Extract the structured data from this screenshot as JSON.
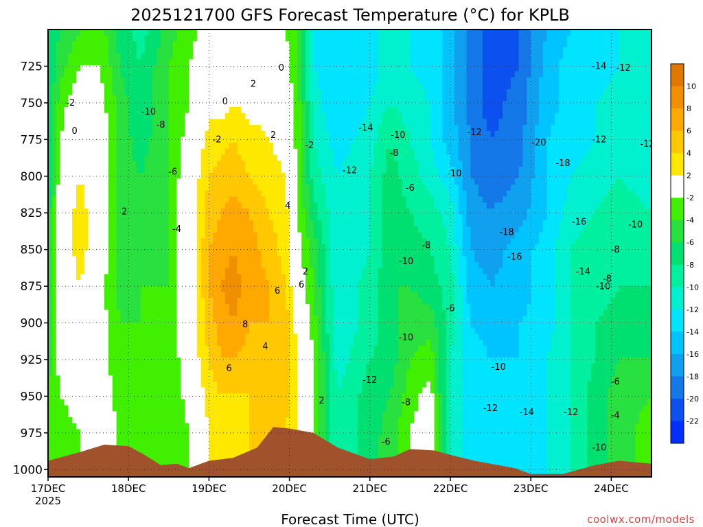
{
  "chart_data": {
    "type": "heatmap",
    "title": "2025121700 GFS Forecast Temperature (°C) for KPLB",
    "xlabel": "Forecast Time (UTC)",
    "ylabel": "",
    "credit": "coolwx.com/models",
    "x_ticks": [
      "17DEC",
      "18DEC",
      "19DEC",
      "20DEC",
      "21DEC",
      "22DEC",
      "23DEC",
      "24DEC"
    ],
    "x_year": "2025",
    "y_ticks": [
      "725",
      "750",
      "775",
      "800",
      "825",
      "850",
      "875",
      "900",
      "925",
      "950",
      "975",
      "1000"
    ],
    "ylim": [
      1005,
      700
    ],
    "y_scale": "pressure (hPa, inverted)",
    "x_range_days": [
      0,
      7.5
    ],
    "colorbar": {
      "labels": [
        "10",
        "8",
        "6",
        "4",
        "2",
        "-2",
        "-4",
        "-6",
        "-8",
        "-10",
        "-12",
        "-14",
        "-16",
        "-18",
        "-20",
        "-22"
      ],
      "bins": [
        {
          "min": 10,
          "max": 12,
          "color": "#e07800"
        },
        {
          "min": 8,
          "max": 10,
          "color": "#f09000"
        },
        {
          "min": 6,
          "max": 8,
          "color": "#ffa800"
        },
        {
          "min": 4,
          "max": 6,
          "color": "#ffc800"
        },
        {
          "min": 2,
          "max": 4,
          "color": "#ffe800"
        },
        {
          "min": -2,
          "max": 2,
          "color": "#ffffff"
        },
        {
          "min": -4,
          "max": -2,
          "color": "#40f000"
        },
        {
          "min": -6,
          "max": -4,
          "color": "#28e040"
        },
        {
          "min": -8,
          "max": -6,
          "color": "#00e070"
        },
        {
          "min": -10,
          "max": -8,
          "color": "#00f0a0"
        },
        {
          "min": -12,
          "max": -10,
          "color": "#00f0d0"
        },
        {
          "min": -14,
          "max": -12,
          "color": "#00e4ff"
        },
        {
          "min": -16,
          "max": -14,
          "color": "#00c4ff"
        },
        {
          "min": -18,
          "max": -16,
          "color": "#10a0f0"
        },
        {
          "min": -20,
          "max": -18,
          "color": "#1478e8"
        },
        {
          "min": -22,
          "max": -20,
          "color": "#0c50f0"
        },
        {
          "min": -24,
          "max": -22,
          "color": "#0030ff"
        }
      ]
    },
    "terrain_color": "#a0522d",
    "surface_pressure": [
      {
        "x": 0.0,
        "p": 994
      },
      {
        "x": 0.4,
        "p": 988
      },
      {
        "x": 0.7,
        "p": 983
      },
      {
        "x": 1.0,
        "p": 984
      },
      {
        "x": 1.2,
        "p": 990
      },
      {
        "x": 1.4,
        "p": 997
      },
      {
        "x": 1.6,
        "p": 996
      },
      {
        "x": 1.75,
        "p": 999
      },
      {
        "x": 2.0,
        "p": 994
      },
      {
        "x": 2.3,
        "p": 992
      },
      {
        "x": 2.6,
        "p": 985
      },
      {
        "x": 2.8,
        "p": 971
      },
      {
        "x": 3.0,
        "p": 972
      },
      {
        "x": 3.3,
        "p": 975
      },
      {
        "x": 3.6,
        "p": 985
      },
      {
        "x": 4.0,
        "p": 993
      },
      {
        "x": 4.3,
        "p": 991
      },
      {
        "x": 4.5,
        "p": 986
      },
      {
        "x": 4.8,
        "p": 987
      },
      {
        "x": 5.0,
        "p": 990
      },
      {
        "x": 5.3,
        "p": 994
      },
      {
        "x": 5.8,
        "p": 999
      },
      {
        "x": 6.0,
        "p": 1003
      },
      {
        "x": 6.4,
        "p": 1003
      },
      {
        "x": 6.8,
        "p": 997
      },
      {
        "x": 7.1,
        "p": 994
      },
      {
        "x": 7.5,
        "p": 996
      }
    ],
    "temperature_columns": [
      {
        "x": 0.0,
        "t": [
          -8,
          -8,
          -8,
          -8,
          -8,
          -7,
          -7,
          -7,
          -6,
          -5,
          -4,
          -4,
          -4,
          -4
        ]
      },
      {
        "x": 0.15,
        "t": [
          -6,
          -5,
          -3,
          -2,
          -1,
          0,
          0,
          0,
          0,
          -1,
          -2,
          -3,
          -3,
          -3
        ]
      },
      {
        "x": 0.4,
        "t": [
          -4,
          -2,
          0,
          1,
          2,
          3,
          3,
          2,
          1,
          0,
          -1,
          -2,
          -2,
          -2
        ]
      },
      {
        "x": 0.65,
        "t": [
          -3,
          -2,
          -1,
          0,
          0,
          0,
          0,
          -1,
          -1,
          -1,
          0,
          1,
          2,
          2
        ]
      },
      {
        "x": 0.9,
        "t": [
          -7,
          -6,
          -5,
          -5,
          -5,
          -5,
          -5,
          -5,
          -4,
          -4,
          -3,
          -3,
          -3,
          -3
        ]
      },
      {
        "x": 1.15,
        "t": [
          -9,
          -8,
          -8,
          -7,
          -6,
          -5,
          -5,
          -4,
          -4,
          -4,
          -4,
          -4,
          -4,
          -4
        ]
      },
      {
        "x": 1.5,
        "t": [
          -5,
          -4,
          -4,
          -4,
          -4,
          -4,
          -4,
          -4,
          -4,
          -4,
          -4,
          -4,
          -4,
          -4
        ]
      },
      {
        "x": 1.75,
        "t": [
          -3,
          -2,
          -2,
          -1,
          0,
          0,
          0,
          0,
          0,
          0,
          -1,
          -2,
          -2,
          -2
        ]
      },
      {
        "x": 2.0,
        "t": [
          -1,
          0,
          1,
          3,
          4,
          5,
          6,
          6,
          5,
          4,
          3,
          2,
          2,
          2
        ]
      },
      {
        "x": 2.15,
        "t": [
          -1,
          0,
          1,
          3,
          5,
          6,
          7,
          8,
          7,
          6,
          4,
          3,
          3,
          3
        ]
      },
      {
        "x": 2.3,
        "t": [
          -1,
          0,
          2,
          4,
          5,
          7,
          8,
          9,
          8,
          6,
          4,
          3,
          3,
          3
        ]
      },
      {
        "x": 2.5,
        "t": [
          -1,
          0,
          1,
          3,
          4,
          6,
          7,
          7,
          6,
          5,
          4,
          4,
          4,
          4
        ]
      },
      {
        "x": 2.75,
        "t": [
          -1,
          0,
          1,
          2,
          3,
          4,
          5,
          6,
          6,
          6,
          5,
          5,
          5,
          5
        ]
      },
      {
        "x": 2.95,
        "t": [
          -2,
          -1,
          0,
          1,
          2,
          3,
          3,
          4,
          5,
          6,
          5,
          4,
          4,
          4
        ]
      },
      {
        "x": 3.1,
        "t": [
          -4,
          -4,
          -3,
          -3,
          -2,
          -2,
          -1,
          0,
          1,
          2,
          2,
          2,
          2,
          2
        ]
      },
      {
        "x": 3.3,
        "t": [
          -12,
          -12,
          -11,
          -10,
          -9,
          -7,
          -5,
          -4,
          -3,
          -2,
          -2,
          -2,
          -2,
          -2
        ]
      },
      {
        "x": 3.6,
        "t": [
          -14,
          -14,
          -14,
          -13,
          -12,
          -12,
          -12,
          -12,
          -12,
          -11,
          -10,
          -10,
          -10,
          -10
        ]
      },
      {
        "x": 4.0,
        "t": [
          -13,
          -13,
          -12,
          -11,
          -10,
          -10,
          -10,
          -9,
          -9,
          -8,
          -7,
          -7,
          -7,
          -7
        ]
      },
      {
        "x": 4.25,
        "t": [
          -11,
          -11,
          -10,
          -8,
          -7,
          -7,
          -7,
          -6,
          -7,
          -7,
          -6,
          -5,
          -5,
          -5
        ]
      },
      {
        "x": 4.5,
        "t": [
          -12,
          -12,
          -11,
          -10,
          -9,
          -8,
          -7,
          -6,
          -5,
          -4,
          -3,
          -2,
          -2,
          -2
        ]
      },
      {
        "x": 4.75,
        "t": [
          -13,
          -13,
          -12,
          -12,
          -11,
          -9,
          -8,
          -7,
          -5,
          -3,
          -1,
          0,
          0,
          0
        ]
      },
      {
        "x": 5.0,
        "t": [
          -15,
          -15,
          -15,
          -15,
          -13,
          -11,
          -10,
          -9,
          -9,
          -10,
          -11,
          -11,
          -11,
          -11
        ]
      },
      {
        "x": 5.25,
        "t": [
          -19,
          -19,
          -19,
          -18,
          -18,
          -17,
          -16,
          -15,
          -14,
          -13,
          -13,
          -13,
          -13,
          -13
        ]
      },
      {
        "x": 5.5,
        "t": [
          -21,
          -21,
          -21,
          -20,
          -19,
          -18,
          -17,
          -16,
          -15,
          -14,
          -14,
          -14,
          -14,
          -14
        ]
      },
      {
        "x": 5.85,
        "t": [
          -20,
          -20,
          -19,
          -19,
          -18,
          -17,
          -15,
          -15,
          -14,
          -14,
          -14,
          -14,
          -14,
          -14
        ]
      },
      {
        "x": 6.2,
        "t": [
          -16,
          -15,
          -15,
          -14,
          -14,
          -14,
          -13,
          -13,
          -13,
          -12,
          -12,
          -12,
          -12,
          -12
        ]
      },
      {
        "x": 6.5,
        "t": [
          -14,
          -13,
          -13,
          -13,
          -12,
          -11,
          -10,
          -10,
          -10,
          -10,
          -10,
          -10,
          -10,
          -10
        ]
      },
      {
        "x": 6.8,
        "t": [
          -13,
          -13,
          -12,
          -12,
          -11,
          -10,
          -9,
          -9,
          -8,
          -8,
          -7,
          -7,
          -7,
          -7
        ]
      },
      {
        "x": 7.1,
        "t": [
          -12,
          -12,
          -11,
          -11,
          -10,
          -9,
          -9,
          -8,
          -7,
          -6,
          -5,
          -5,
          -5,
          -5
        ]
      },
      {
        "x": 7.5,
        "t": [
          -12,
          -12,
          -12,
          -11,
          -11,
          -10,
          -9,
          -8,
          -7,
          -6,
          -4,
          -3,
          -3,
          -3
        ]
      }
    ],
    "temperature_levels": [
      700,
      725,
      750,
      775,
      800,
      825,
      850,
      875,
      900,
      925,
      950,
      975,
      1000,
      1005
    ],
    "contour_labels": [
      {
        "x": 0.28,
        "p": 752,
        "text": "-2"
      },
      {
        "x": 0.33,
        "p": 771,
        "text": "0"
      },
      {
        "x": 0.95,
        "p": 826,
        "text": "2"
      },
      {
        "x": 1.25,
        "p": 758,
        "text": "-10"
      },
      {
        "x": 1.4,
        "p": 767,
        "text": "-8"
      },
      {
        "x": 1.55,
        "p": 799,
        "text": "-6"
      },
      {
        "x": 1.6,
        "p": 838,
        "text": "-4"
      },
      {
        "x": 2.1,
        "p": 777,
        "text": "-2"
      },
      {
        "x": 2.2,
        "p": 751,
        "text": "0"
      },
      {
        "x": 2.55,
        "p": 739,
        "text": "2"
      },
      {
        "x": 2.9,
        "p": 728,
        "text": "0"
      },
      {
        "x": 2.8,
        "p": 774,
        "text": "2"
      },
      {
        "x": 3.25,
        "p": 781,
        "text": "-2"
      },
      {
        "x": 2.98,
        "p": 822,
        "text": "4"
      },
      {
        "x": 2.85,
        "p": 880,
        "text": "6"
      },
      {
        "x": 3.15,
        "p": 876,
        "text": "6"
      },
      {
        "x": 2.45,
        "p": 903,
        "text": "8"
      },
      {
        "x": 2.7,
        "p": 918,
        "text": "4"
      },
      {
        "x": 2.25,
        "p": 933,
        "text": "6"
      },
      {
        "x": 3.2,
        "p": 867,
        "text": "2"
      },
      {
        "x": 3.4,
        "p": 955,
        "text": "2"
      },
      {
        "x": 3.95,
        "p": 769,
        "text": "-14"
      },
      {
        "x": 3.75,
        "p": 798,
        "text": "-12"
      },
      {
        "x": 4.35,
        "p": 774,
        "text": "-10"
      },
      {
        "x": 4.3,
        "p": 786,
        "text": "-8"
      },
      {
        "x": 4.5,
        "p": 810,
        "text": "-6"
      },
      {
        "x": 5.05,
        "p": 800,
        "text": "-10"
      },
      {
        "x": 5.3,
        "p": 772,
        "text": "-12"
      },
      {
        "x": 4.7,
        "p": 849,
        "text": "-8"
      },
      {
        "x": 4.45,
        "p": 860,
        "text": "-10"
      },
      {
        "x": 5.0,
        "p": 892,
        "text": "-6"
      },
      {
        "x": 4.45,
        "p": 912,
        "text": "-10"
      },
      {
        "x": 4.0,
        "p": 941,
        "text": "-12"
      },
      {
        "x": 4.45,
        "p": 956,
        "text": "-8"
      },
      {
        "x": 4.2,
        "p": 983,
        "text": "-6"
      },
      {
        "x": 5.7,
        "p": 840,
        "text": "-18"
      },
      {
        "x": 5.8,
        "p": 857,
        "text": "-16"
      },
      {
        "x": 6.1,
        "p": 779,
        "text": "-20"
      },
      {
        "x": 6.4,
        "p": 793,
        "text": "-18"
      },
      {
        "x": 6.6,
        "p": 833,
        "text": "-16"
      },
      {
        "x": 6.85,
        "p": 727,
        "text": "-14"
      },
      {
        "x": 7.15,
        "p": 728,
        "text": "-12"
      },
      {
        "x": 6.85,
        "p": 777,
        "text": "-12"
      },
      {
        "x": 7.45,
        "p": 780,
        "text": "-12"
      },
      {
        "x": 7.3,
        "p": 835,
        "text": "-10"
      },
      {
        "x": 7.05,
        "p": 852,
        "text": "-8"
      },
      {
        "x": 6.65,
        "p": 867,
        "text": "-14"
      },
      {
        "x": 6.95,
        "p": 872,
        "text": "-8"
      },
      {
        "x": 6.9,
        "p": 877,
        "text": "-10"
      },
      {
        "x": 5.6,
        "p": 932,
        "text": "-10"
      },
      {
        "x": 5.5,
        "p": 960,
        "text": "-12"
      },
      {
        "x": 5.95,
        "p": 963,
        "text": "-14"
      },
      {
        "x": 6.5,
        "p": 963,
        "text": "-12"
      },
      {
        "x": 6.85,
        "p": 987,
        "text": "-10"
      },
      {
        "x": 7.05,
        "p": 942,
        "text": "-6"
      },
      {
        "x": 7.05,
        "p": 965,
        "text": "-4"
      }
    ]
  }
}
